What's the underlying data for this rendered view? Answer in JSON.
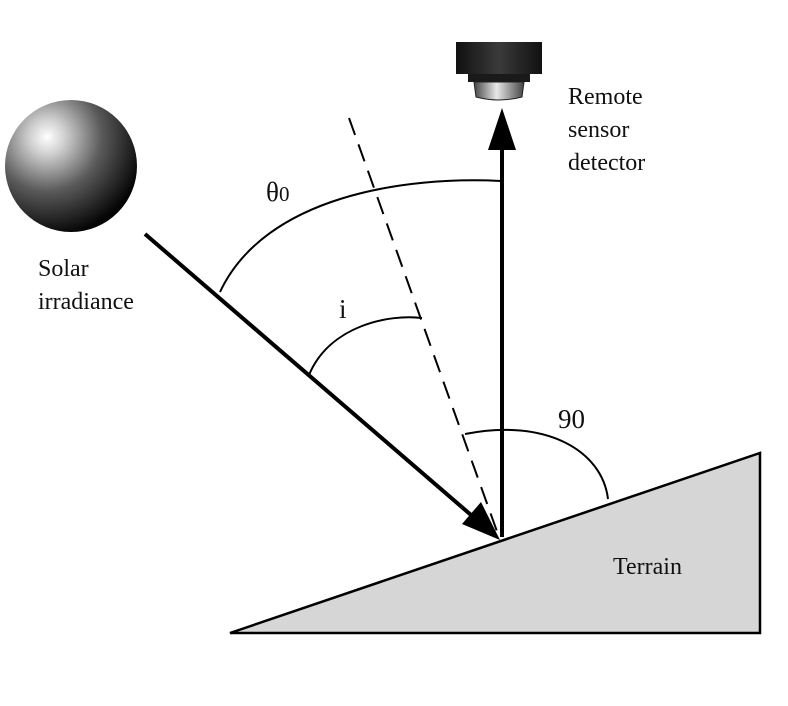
{
  "labels": {
    "sensor_line1": "Remote",
    "sensor_line2": "sensor",
    "sensor_line3": "detector",
    "solar_line1": "Solar",
    "solar_line2": "irradiance",
    "theta_symbol": "θ",
    "theta_subscript": "0",
    "incidence_symbol": "i",
    "right_angle": "90",
    "terrain": "Terrain"
  },
  "colors": {
    "terrain_fill": "#d6d6d6",
    "line": "#000000",
    "sun_highlight": "#ffffff",
    "sun_shadow": "#050505"
  },
  "icons": {
    "sun": "sphere",
    "sensor": "cylinder-detector"
  }
}
